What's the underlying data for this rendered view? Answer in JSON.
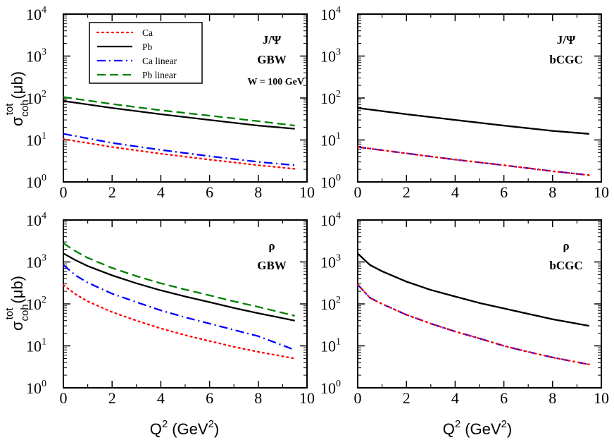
{
  "chart_data": [
    {
      "type": "line",
      "panel": "top-left",
      "annotations": [
        "J/Ψ",
        "GBW",
        "W = 100 GeV"
      ],
      "xlim": [
        0,
        10
      ],
      "ylim": [
        1,
        10000
      ],
      "yscale": "log",
      "xticks": [
        "0",
        "2",
        "4",
        "6",
        "8",
        "10"
      ],
      "ylabel": "σ_coh^tot (μb)",
      "xlabel": "",
      "series": [
        {
          "name": "Ca",
          "x": [
            0,
            2,
            4,
            6,
            8,
            9.5
          ],
          "values": [
            10.5,
            6.8,
            4.7,
            3.4,
            2.5,
            2.05
          ]
        },
        {
          "name": "Pb",
          "x": [
            0,
            2,
            4,
            6,
            8,
            9.5
          ],
          "values": [
            85,
            58,
            41,
            30,
            22,
            18.5
          ]
        },
        {
          "name": "Ca linear",
          "x": [
            0,
            2,
            4,
            6,
            8,
            9.5
          ],
          "values": [
            14,
            8.5,
            5.8,
            4.1,
            3.0,
            2.5
          ]
        },
        {
          "name": "Pb linear",
          "x": [
            0,
            2,
            4,
            6,
            8,
            9.5
          ],
          "values": [
            105,
            72,
            51,
            38,
            28,
            22
          ]
        }
      ]
    },
    {
      "type": "line",
      "panel": "top-right",
      "annotations": [
        "J/Ψ",
        "bCGC"
      ],
      "xlim": [
        0,
        10
      ],
      "ylim": [
        1,
        10000
      ],
      "yscale": "log",
      "xticks": [
        "0",
        "2",
        "4",
        "6",
        "8",
        "10"
      ],
      "ylabel": "",
      "xlabel": "",
      "series": [
        {
          "name": "Ca",
          "x": [
            0,
            2,
            4,
            6,
            8,
            9.5
          ],
          "values": [
            6.8,
            4.8,
            3.4,
            2.5,
            1.8,
            1.45
          ]
        },
        {
          "name": "Pb",
          "x": [
            0,
            2,
            4,
            6,
            8,
            9.5
          ],
          "values": [
            58,
            41,
            30,
            22,
            16.5,
            14
          ]
        },
        {
          "name": "Ca linear",
          "x": [
            0,
            2,
            4,
            6,
            8,
            9.5
          ],
          "values": [
            6.8,
            4.8,
            3.4,
            2.5,
            1.8,
            1.45
          ]
        },
        {
          "name": "Pb linear",
          "x": [
            0,
            2,
            4,
            6,
            8,
            9.5
          ],
          "values": [
            58,
            41,
            30,
            22,
            16.5,
            14
          ]
        }
      ]
    },
    {
      "type": "line",
      "panel": "bottom-left",
      "annotations": [
        "ρ",
        "GBW"
      ],
      "xlim": [
        0,
        10
      ],
      "ylim": [
        1,
        10000
      ],
      "yscale": "log",
      "xticks": [
        "0",
        "2",
        "4",
        "6",
        "8",
        "10"
      ],
      "ylabel": "σ_coh^tot (μb)",
      "xlabel": "Q² (GeV²)",
      "series": [
        {
          "name": "Ca",
          "x": [
            0,
            0.5,
            1,
            2,
            3,
            4,
            5,
            6,
            7,
            8,
            9.5
          ],
          "values": [
            280,
            170,
            115,
            64,
            40,
            26,
            18,
            13,
            9.5,
            7.2,
            5
          ]
        },
        {
          "name": "Pb",
          "x": [
            0,
            0.5,
            1,
            2,
            3,
            4,
            5,
            6,
            7,
            8,
            9.5
          ],
          "values": [
            1600,
            1100,
            800,
            480,
            310,
            210,
            150,
            110,
            80,
            60,
            40
          ]
        },
        {
          "name": "Ca linear",
          "x": [
            0,
            0.5,
            1,
            2,
            3,
            4,
            5,
            6,
            7,
            8,
            9.5
          ],
          "values": [
            850,
            480,
            320,
            175,
            110,
            70,
            48,
            34,
            24,
            17,
            8
          ]
        },
        {
          "name": "Pb linear",
          "x": [
            0,
            0.5,
            1,
            2,
            3,
            4,
            5,
            6,
            7,
            8,
            9.5
          ],
          "values": [
            2800,
            1800,
            1250,
            720,
            460,
            310,
            220,
            160,
            115,
            85,
            52
          ]
        }
      ]
    },
    {
      "type": "line",
      "panel": "bottom-right",
      "annotations": [
        "ρ",
        "bCGC"
      ],
      "xlim": [
        0,
        10
      ],
      "ylim": [
        1,
        10000
      ],
      "yscale": "log",
      "xticks": [
        "0",
        "2",
        "4",
        "6",
        "8",
        "10"
      ],
      "ylabel": "",
      "xlabel": "Q² (GeV²)",
      "series": [
        {
          "name": "Ca",
          "x": [
            0,
            0.5,
            1,
            2,
            3,
            4,
            5,
            6,
            7,
            8,
            9.5
          ],
          "values": [
            290,
            140,
            100,
            55,
            34,
            22,
            15,
            10,
            7.2,
            5.3,
            3.6
          ]
        },
        {
          "name": "Pb",
          "x": [
            0,
            0.5,
            1,
            2,
            3,
            4,
            5,
            6,
            7,
            8,
            9.5
          ],
          "values": [
            1600,
            850,
            600,
            340,
            215,
            150,
            105,
            78,
            58,
            43,
            30
          ]
        },
        {
          "name": "Ca linear",
          "x": [
            0,
            0.5,
            1,
            2,
            3,
            4,
            5,
            6,
            7,
            8,
            9.5
          ],
          "values": [
            290,
            140,
            100,
            55,
            34,
            22,
            15,
            10,
            7.2,
            5.3,
            3.6
          ]
        },
        {
          "name": "Pb linear",
          "x": [
            0,
            0.5,
            1,
            2,
            3,
            4,
            5,
            6,
            7,
            8,
            9.5
          ],
          "values": [
            1600,
            850,
            600,
            340,
            215,
            150,
            105,
            78,
            58,
            43,
            30
          ]
        }
      ]
    }
  ],
  "legend": {
    "entries": [
      {
        "label": "Ca",
        "color": "#ff0000",
        "style": "dotted"
      },
      {
        "label": "Pb",
        "color": "#000000",
        "style": "solid"
      },
      {
        "label": "Ca linear",
        "color": "#0000ff",
        "style": "dashdot"
      },
      {
        "label": "Pb linear",
        "color": "#008000",
        "style": "dashed"
      }
    ]
  },
  "y_axis_label": {
    "sigma": "σ",
    "sub": "coh",
    "sup": "tot",
    "unit": "(μb)"
  },
  "x_axis_label": {
    "q": "Q",
    "sup": "2",
    "unit_open": "(GeV",
    "unit_sup": "2",
    "unit_close": ")"
  },
  "y_tick_base": "10",
  "y_tick_exponents": [
    "0",
    "1",
    "2",
    "3",
    "4"
  ]
}
